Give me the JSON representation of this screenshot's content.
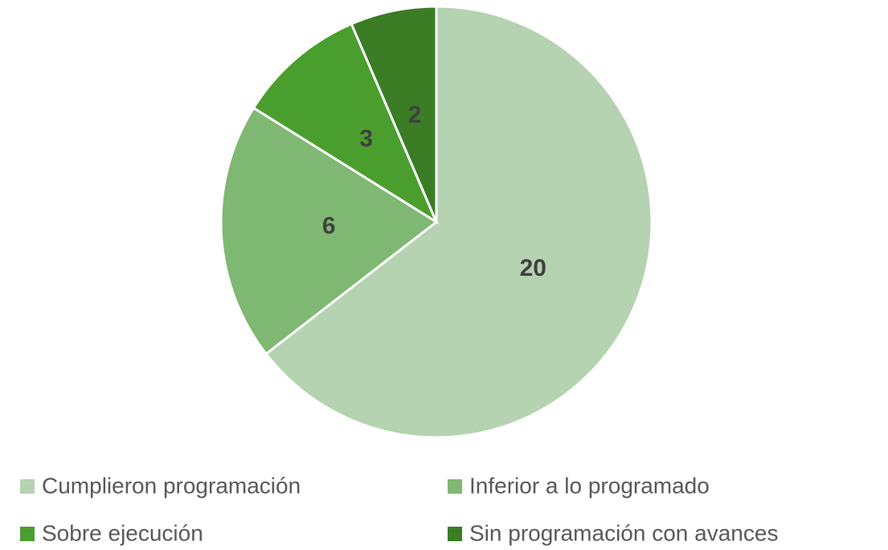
{
  "chart_data": {
    "type": "pie",
    "categories": [
      "Cumplieron programación",
      "Inferior a lo programado",
      "Sobre ejecución",
      "Sin programación con avances"
    ],
    "values": [
      20,
      6,
      3,
      2
    ],
    "colors": [
      "#b5d3b0",
      "#7fb872",
      "#4a9e2e",
      "#3a7d25"
    ],
    "legend": "bottom"
  }
}
